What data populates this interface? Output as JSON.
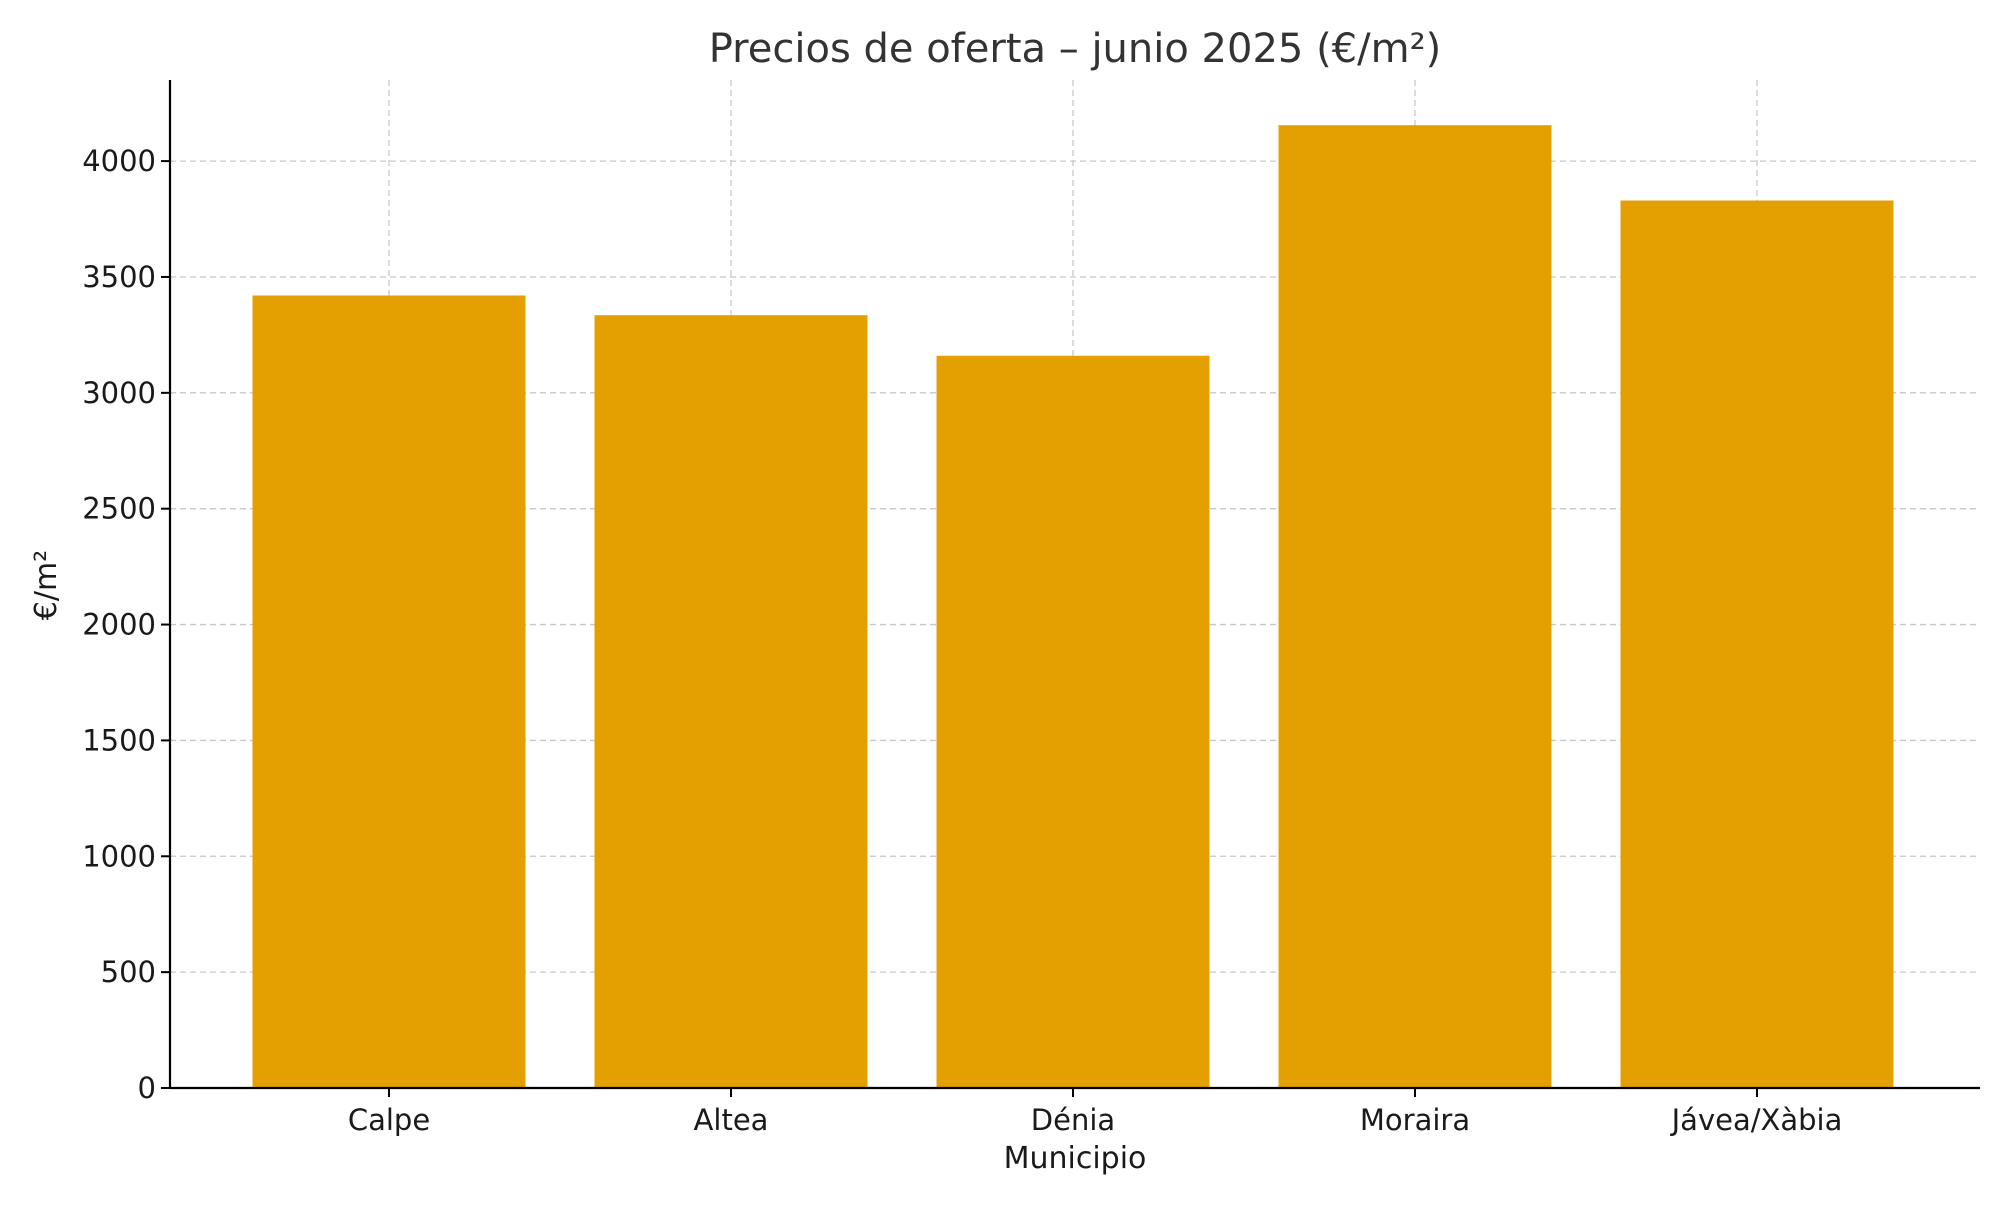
{
  "chart_data": {
    "type": "bar",
    "title": "Precios de oferta – junio 2025 (€/m²)",
    "xlabel": "Municipio",
    "ylabel": "€/m²",
    "categories": [
      "Calpe",
      "Altea",
      "Dénia",
      "Moraira",
      "Jávea/Xàbia"
    ],
    "values": [
      3420,
      3335,
      3160,
      4155,
      3830
    ],
    "ylim": [
      0,
      4350
    ],
    "yticks": [
      0,
      500,
      1000,
      1500,
      2000,
      2500,
      3000,
      3500,
      4000
    ],
    "grid": true,
    "bar_color": "#E3A000",
    "grid_color": "#c8c8c8"
  }
}
